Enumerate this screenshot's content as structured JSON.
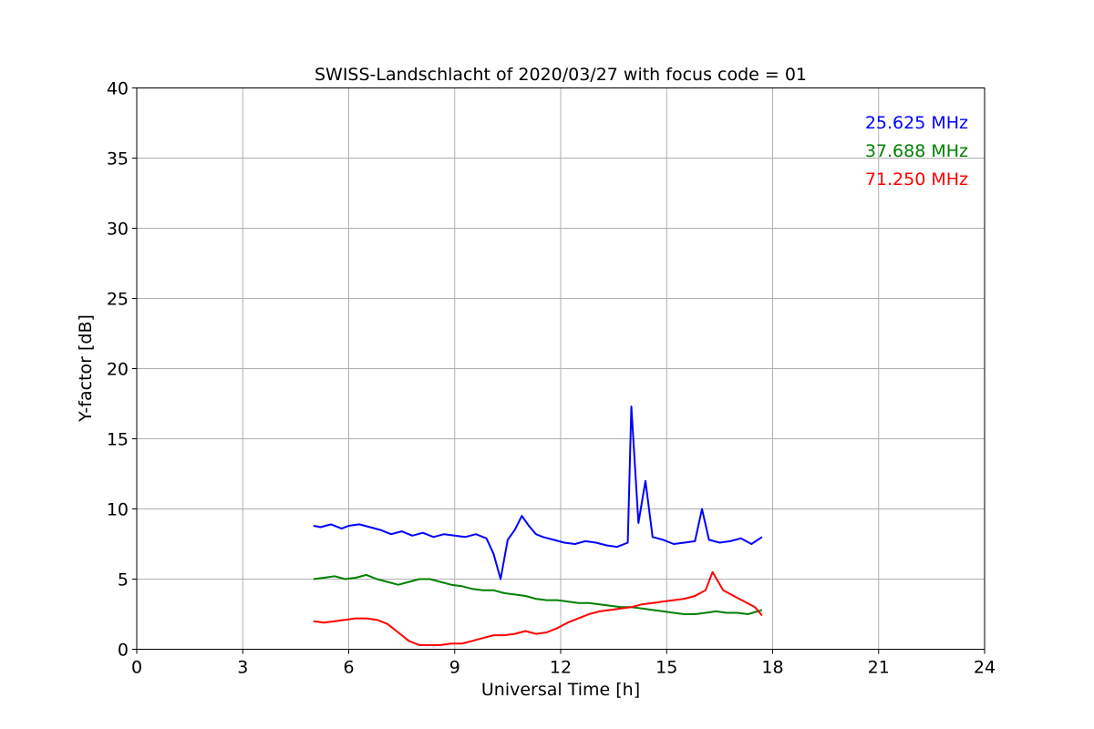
{
  "chart_data": {
    "type": "line",
    "title": "SWISS-Landschlacht of 2020/03/27 with focus code = 01",
    "xlabel": "Universal Time [h]",
    "ylabel": "Y-factor [dB]",
    "xlim": [
      0,
      24
    ],
    "ylim": [
      0,
      40
    ],
    "xticks": [
      0,
      3,
      6,
      9,
      12,
      15,
      18,
      21,
      24
    ],
    "yticks": [
      0,
      5,
      10,
      15,
      20,
      25,
      30,
      35,
      40
    ],
    "xtick_labels": [
      "0",
      "3",
      "6",
      "9",
      "12",
      "15",
      "18",
      "21",
      "24"
    ],
    "ytick_labels": [
      "0",
      "5",
      "10",
      "15",
      "20",
      "25",
      "30",
      "35",
      "40"
    ],
    "grid": true,
    "legend_position": "top-right",
    "series": [
      {
        "name": "25.625 MHz",
        "color": "#0000ff",
        "x": [
          5.0,
          5.2,
          5.5,
          5.8,
          6.0,
          6.3,
          6.6,
          6.9,
          7.2,
          7.5,
          7.8,
          8.1,
          8.4,
          8.7,
          9.0,
          9.3,
          9.6,
          9.9,
          10.1,
          10.3,
          10.5,
          10.7,
          10.9,
          11.1,
          11.3,
          11.5,
          11.8,
          12.1,
          12.4,
          12.7,
          13.0,
          13.3,
          13.6,
          13.9,
          14.0,
          14.2,
          14.4,
          14.6,
          14.9,
          15.2,
          15.5,
          15.8,
          16.0,
          16.2,
          16.5,
          16.8,
          17.1,
          17.4,
          17.7
        ],
        "y": [
          8.8,
          8.7,
          8.9,
          8.6,
          8.8,
          8.9,
          8.7,
          8.5,
          8.2,
          8.4,
          8.1,
          8.3,
          8.0,
          8.2,
          8.1,
          8.0,
          8.2,
          7.9,
          6.8,
          5.0,
          7.8,
          8.5,
          9.5,
          8.8,
          8.2,
          8.0,
          7.8,
          7.6,
          7.5,
          7.7,
          7.6,
          7.4,
          7.3,
          7.6,
          17.3,
          9.0,
          12.0,
          8.0,
          7.8,
          7.5,
          7.6,
          7.7,
          10.0,
          7.8,
          7.6,
          7.7,
          7.9,
          7.5,
          8.0
        ]
      },
      {
        "name": "37.688 MHz",
        "color": "#008000",
        "x": [
          5.0,
          5.3,
          5.6,
          5.9,
          6.2,
          6.5,
          6.8,
          7.1,
          7.4,
          7.7,
          8.0,
          8.3,
          8.6,
          8.9,
          9.2,
          9.5,
          9.8,
          10.1,
          10.4,
          10.7,
          11.0,
          11.3,
          11.6,
          11.9,
          12.2,
          12.5,
          12.8,
          13.1,
          13.4,
          13.7,
          14.0,
          14.3,
          14.6,
          14.9,
          15.2,
          15.5,
          15.8,
          16.1,
          16.4,
          16.7,
          17.0,
          17.3,
          17.7
        ],
        "y": [
          5.0,
          5.1,
          5.2,
          5.0,
          5.1,
          5.3,
          5.0,
          4.8,
          4.6,
          4.8,
          5.0,
          5.0,
          4.8,
          4.6,
          4.5,
          4.3,
          4.2,
          4.2,
          4.0,
          3.9,
          3.8,
          3.6,
          3.5,
          3.5,
          3.4,
          3.3,
          3.3,
          3.2,
          3.1,
          3.0,
          3.0,
          2.9,
          2.8,
          2.7,
          2.6,
          2.5,
          2.5,
          2.6,
          2.7,
          2.6,
          2.6,
          2.5,
          2.8
        ]
      },
      {
        "name": "71.250 MHz",
        "color": "#ff0000",
        "x": [
          5.0,
          5.3,
          5.6,
          5.9,
          6.2,
          6.5,
          6.8,
          7.1,
          7.4,
          7.7,
          8.0,
          8.3,
          8.6,
          8.9,
          9.2,
          9.5,
          9.8,
          10.1,
          10.4,
          10.7,
          11.0,
          11.3,
          11.6,
          11.9,
          12.2,
          12.5,
          12.8,
          13.1,
          13.4,
          13.7,
          14.0,
          14.3,
          14.6,
          14.9,
          15.2,
          15.5,
          15.8,
          16.1,
          16.3,
          16.6,
          16.9,
          17.2,
          17.5,
          17.7
        ],
        "y": [
          2.0,
          1.9,
          2.0,
          2.1,
          2.2,
          2.2,
          2.1,
          1.8,
          1.2,
          0.6,
          0.3,
          0.3,
          0.3,
          0.4,
          0.4,
          0.6,
          0.8,
          1.0,
          1.0,
          1.1,
          1.3,
          1.1,
          1.2,
          1.5,
          1.9,
          2.2,
          2.5,
          2.7,
          2.8,
          2.9,
          3.0,
          3.2,
          3.3,
          3.4,
          3.5,
          3.6,
          3.8,
          4.2,
          5.5,
          4.2,
          3.8,
          3.4,
          3.0,
          2.4
        ]
      }
    ]
  }
}
